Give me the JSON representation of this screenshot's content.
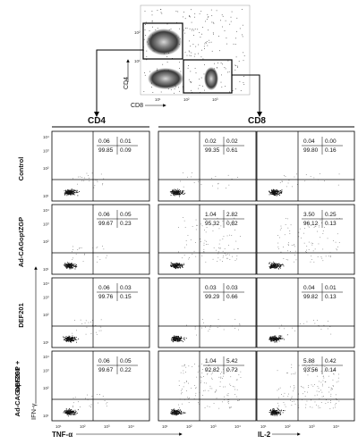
{
  "top_plot": {
    "ylabel": "CD4",
    "xlabel": "CD8",
    "tick_labels": [
      "10¹",
      "10²",
      "10³",
      "10⁴"
    ]
  },
  "column_headers": [
    "CD4",
    "CD8"
  ],
  "row_labels": [
    "Control",
    "Ad-CAGoptZGP",
    "DEF201",
    "Ad-CAGoptZGP + DEF201"
  ],
  "y_axis_label": "IFN-γ",
  "x_axis_labels": [
    "TNF-α",
    "IL-2"
  ],
  "panels": [
    [
      {
        "ul": "0.06",
        "ur": "0.01",
        "ll": "99.85",
        "lr": "0.09"
      },
      {
        "ul": "0.02",
        "ur": "0.02",
        "ll": "99.35",
        "lr": "0.61"
      },
      {
        "ul": "0.04",
        "ur": "0.00",
        "ll": "99.80",
        "lr": "0.16"
      }
    ],
    [
      {
        "ul": "0.06",
        "ur": "0.05",
        "ll": "99.67",
        "lr": "0.23"
      },
      {
        "ul": "1.04",
        "ur": "2.82",
        "ll": "95.32",
        "lr": "0.82"
      },
      {
        "ul": "3.50",
        "ur": "0.25",
        "ll": "96.12",
        "lr": "0.13"
      }
    ],
    [
      {
        "ul": "0.06",
        "ur": "0.03",
        "ll": "99.76",
        "lr": "0.15"
      },
      {
        "ul": "0.03",
        "ur": "0.03",
        "ll": "99.29",
        "lr": "0.66"
      },
      {
        "ul": "0.04",
        "ur": "0.01",
        "ll": "99.82",
        "lr": "0.13"
      }
    ],
    [
      {
        "ul": "0.06",
        "ur": "0.05",
        "ll": "99.67",
        "lr": "0.22"
      },
      {
        "ul": "1.04",
        "ur": "5.42",
        "ll": "92.82",
        "lr": "0.72"
      },
      {
        "ul": "5.88",
        "ur": "0.42",
        "ll": "93.56",
        "lr": "0.14"
      }
    ]
  ],
  "panel_tick_labels": [
    "10¹",
    "10²",
    "10³",
    "10⁴"
  ]
}
